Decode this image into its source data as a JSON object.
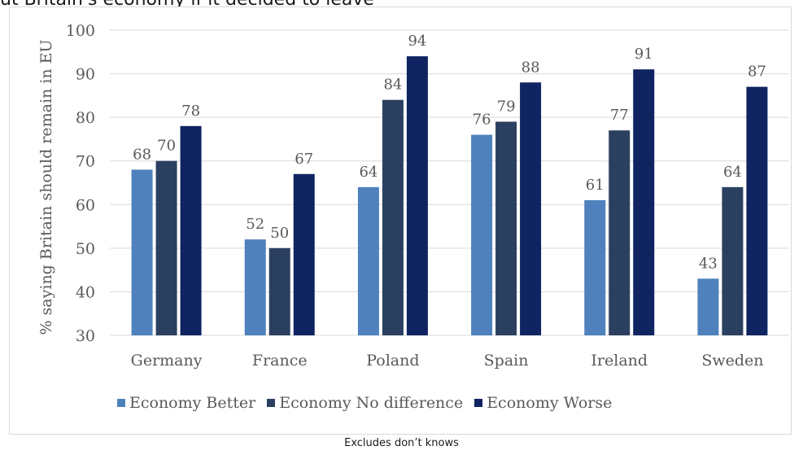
{
  "title": "ut Britain's economy if it decided to leave",
  "footnote": "Excludes don’t knows",
  "colors": {
    "economy_better": "#4f81bd",
    "economy_no_difference": "#2b4060",
    "economy_worse": "#0f2461",
    "axis_text": "#595959",
    "gridline": "#d9d9d9"
  },
  "chart_data": {
    "type": "bar",
    "title": "",
    "xlabel": "",
    "ylabel": "% saying Britain should remain in EU",
    "ylim": [
      30,
      100
    ],
    "yticks": [
      30,
      40,
      50,
      60,
      70,
      80,
      90,
      100
    ],
    "grid": true,
    "legend_position": "bottom",
    "categories": [
      "Germany",
      "France",
      "Poland",
      "Spain",
      "Ireland",
      "Sweden"
    ],
    "series": [
      {
        "name": "Economy Better",
        "values": [
          68,
          52,
          64,
          76,
          61,
          43
        ]
      },
      {
        "name": "Economy No difference",
        "values": [
          70,
          50,
          84,
          79,
          77,
          64
        ]
      },
      {
        "name": "Economy Worse",
        "values": [
          78,
          67,
          94,
          88,
          91,
          87
        ]
      }
    ]
  }
}
